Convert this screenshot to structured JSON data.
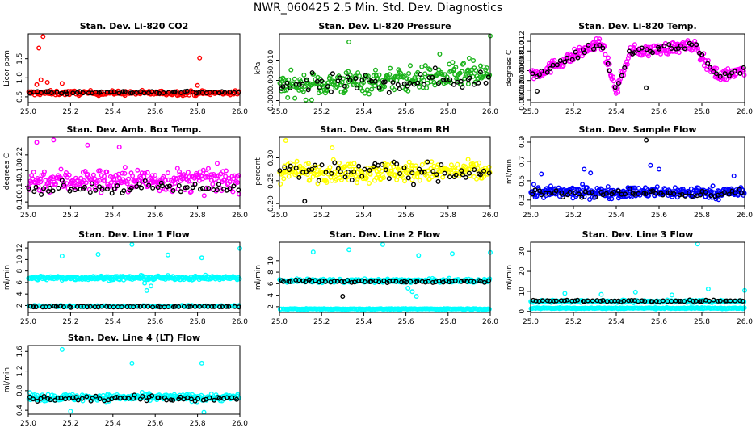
{
  "page": {
    "title": "NWR_060425  2.5 Min. Std. Dev. Diagnostics"
  },
  "colors": {
    "black": "#000000",
    "red": "#ff0000",
    "green": "#1bb31b",
    "magenta": "#ff00ff",
    "yellow": "#ffff00",
    "blue": "#0000ff",
    "cyan": "#00ffff"
  },
  "chart_data": [
    {
      "type": "scatter",
      "title": "Stan. Dev. Li-820 CO2",
      "xlabel": "",
      "ylabel": "Licor ppm",
      "xlim": [
        25.0,
        26.0
      ],
      "ylim": [
        0.35,
        2.15
      ],
      "xticks": [
        "25.0",
        "25.2",
        "25.4",
        "25.6",
        "25.8",
        "26.0"
      ],
      "yticks": [
        "0.5",
        "1.0",
        "1.5"
      ],
      "series": [
        {
          "color": "red",
          "base": 0.6,
          "noise": 0.06,
          "n": 220,
          "outliers": [
            [
              25.07,
              2.08
            ],
            [
              25.05,
              1.78
            ],
            [
              25.06,
              0.95
            ],
            [
              25.09,
              0.88
            ],
            [
              25.16,
              0.85
            ],
            [
              25.81,
              1.52
            ],
            [
              25.8,
              0.8
            ],
            [
              25.04,
              0.82
            ]
          ]
        },
        {
          "color": "black",
          "base": 0.62,
          "noise": 0.04,
          "n": 55,
          "outliers": []
        }
      ]
    },
    {
      "type": "scatter",
      "title": "Stan. Dev. Li-820 Pressure",
      "xlabel": "",
      "ylabel": "kPa",
      "xlim": [
        25.0,
        26.0
      ],
      "ylim": [
        -0.0005,
        0.0165
      ],
      "xticks": [
        "25.0",
        "25.2",
        "25.4",
        "25.6",
        "25.8",
        "26.0"
      ],
      "yticks": [
        "0.000",
        "0.005",
        "0.010"
      ],
      "series": [
        {
          "color": "green",
          "base": 0.0035,
          "noise": 0.003,
          "trend": 0.003,
          "n": 260,
          "outliers": [
            [
              25.33,
              0.0145
            ],
            [
              26.0,
              0.016
            ],
            [
              25.76,
              0.0115
            ],
            [
              25.9,
              0.0105
            ]
          ]
        },
        {
          "color": "black",
          "base": 0.0035,
          "noise": 0.0025,
          "trend": 0.002,
          "n": 60,
          "outliers": []
        }
      ]
    },
    {
      "type": "scatter",
      "title": "Stan. Dev. Li-820 Temp.",
      "xlabel": "",
      "ylabel": "degrees C",
      "xlim": [
        25.0,
        26.0
      ],
      "ylim": [
        -0.0005,
        0.0135
      ],
      "xticks": [
        "25.0",
        "25.2",
        "25.4",
        "25.6",
        "25.8",
        "26.0"
      ],
      "yticks": [
        "0.000",
        "0.002",
        "0.004",
        "0.006",
        "0.008",
        "0.010",
        "0.012"
      ],
      "series": [
        {
          "color": "magenta",
          "shape": "temp",
          "noise": 0.0012,
          "n": 280,
          "outliers": []
        },
        {
          "color": "black",
          "shape": "temp",
          "noise": 0.001,
          "n": 60,
          "outliers": [
            [
              25.03,
              0.0018
            ],
            [
              25.54,
              0.0025
            ]
          ]
        }
      ]
    },
    {
      "type": "scatter",
      "title": "Stan. Dev. Amb. Box Temp.",
      "xlabel": "",
      "ylabel": "degrees C",
      "xlim": [
        25.0,
        26.0
      ],
      "ylim": [
        0.09,
        0.265
      ],
      "xticks": [
        "25.0",
        "25.2",
        "25.4",
        "25.6",
        "25.8",
        "26.0"
      ],
      "yticks": [
        "0.10",
        "0.14",
        "0.18",
        "0.22"
      ],
      "series": [
        {
          "color": "magenta",
          "base": 0.155,
          "noise": 0.03,
          "n": 260,
          "outliers": [
            [
              25.12,
              0.258
            ],
            [
              25.04,
              0.252
            ],
            [
              25.28,
              0.245
            ],
            [
              25.43,
              0.24
            ]
          ]
        },
        {
          "color": "black",
          "base": 0.135,
          "noise": 0.015,
          "n": 60,
          "outliers": []
        }
      ]
    },
    {
      "type": "scatter",
      "title": "Stan. Dev. Gas Stream RH",
      "xlabel": "",
      "ylabel": "percent",
      "xlim": [
        25.0,
        26.0
      ],
      "ylim": [
        0.195,
        0.345
      ],
      "xticks": [
        "25.0",
        "25.2",
        "25.4",
        "25.6",
        "25.8",
        "26.0"
      ],
      "yticks": [
        "0.20",
        "0.25",
        "0.30"
      ],
      "series": [
        {
          "color": "yellow",
          "base": 0.27,
          "noise": 0.022,
          "n": 260,
          "outliers": [
            [
              25.03,
              0.338
            ],
            [
              25.25,
              0.322
            ]
          ]
        },
        {
          "color": "black",
          "base": 0.27,
          "noise": 0.022,
          "n": 60,
          "outliers": [
            [
              25.12,
              0.205
            ]
          ]
        }
      ]
    },
    {
      "type": "scatter",
      "title": "Stan. Dev. Sample Flow",
      "xlabel": "",
      "ylabel": "ml/min",
      "xlim": [
        25.0,
        26.0
      ],
      "ylim": [
        0.24,
        0.95
      ],
      "xticks": [
        "25.0",
        "25.2",
        "25.4",
        "25.6",
        "25.8",
        "26.0"
      ],
      "yticks": [
        "0.3",
        "0.5",
        "0.7",
        "0.9"
      ],
      "series": [
        {
          "color": "blue",
          "base": 0.38,
          "noise": 0.06,
          "n": 300,
          "outliers": [
            [
              25.25,
              0.62
            ],
            [
              25.28,
              0.58
            ],
            [
              25.56,
              0.66
            ],
            [
              25.6,
              0.62
            ],
            [
              25.05,
              0.57
            ],
            [
              25.95,
              0.55
            ]
          ]
        },
        {
          "color": "black",
          "base": 0.37,
          "noise": 0.04,
          "n": 60,
          "outliers": [
            [
              25.54,
              0.92
            ]
          ]
        }
      ]
    },
    {
      "type": "scatter",
      "title": "Stan. Dev. Line 1 Flow",
      "xlabel": "",
      "ylabel": "ml/min",
      "xlim": [
        25.0,
        26.0
      ],
      "ylim": [
        0.8,
        13.0
      ],
      "xticks": [
        "25.0",
        "25.2",
        "25.4",
        "25.6",
        "25.8",
        "26.0"
      ],
      "yticks": [
        "2",
        "4",
        "6",
        "8",
        "10",
        "12"
      ],
      "series": [
        {
          "color": "cyan",
          "base": 6.8,
          "noise": 0.35,
          "n": 260,
          "outliers": [
            [
              25.16,
              10.6
            ],
            [
              25.33,
              10.9
            ],
            [
              25.49,
              12.6
            ],
            [
              25.66,
              10.8
            ],
            [
              25.82,
              10.3
            ],
            [
              26.0,
              11.9
            ],
            [
              25.56,
              4.6
            ],
            [
              25.58,
              5.4
            ],
            [
              25.55,
              5.9
            ]
          ]
        },
        {
          "color": "cyan",
          "base": 1.9,
          "noise": 0.12,
          "n": 160,
          "outliers": []
        },
        {
          "color": "black",
          "base": 1.8,
          "noise": 0.1,
          "n": 55,
          "outliers": []
        }
      ]
    },
    {
      "type": "scatter",
      "title": "Stan. Dev. Line 2 Flow",
      "xlabel": "",
      "ylabel": "ml/min",
      "xlim": [
        25.0,
        26.0
      ],
      "ylim": [
        1.0,
        13.2
      ],
      "xticks": [
        "25.0",
        "25.2",
        "25.4",
        "25.6",
        "25.8",
        "26.0"
      ],
      "yticks": [
        "2",
        "4",
        "6",
        "8",
        "10"
      ],
      "series": [
        {
          "color": "cyan",
          "base": 6.5,
          "noise": 0.3,
          "n": 260,
          "outliers": [
            [
              25.16,
              11.5
            ],
            [
              25.33,
              11.9
            ],
            [
              25.49,
              12.8
            ],
            [
              25.66,
              10.9
            ],
            [
              25.82,
              11.2
            ],
            [
              26.0,
              11.4
            ],
            [
              25.63,
              4.6
            ],
            [
              25.65,
              3.8
            ],
            [
              25.61,
              5.2
            ]
          ]
        },
        {
          "color": "cyan",
          "base": 1.6,
          "noise": 0.08,
          "n": 200,
          "outliers": []
        },
        {
          "color": "black",
          "base": 6.4,
          "noise": 0.25,
          "n": 60,
          "outliers": [
            [
              25.3,
              3.8
            ]
          ]
        }
      ]
    },
    {
      "type": "scatter",
      "title": "Stan. Dev. Line 3 Flow",
      "xlabel": "",
      "ylabel": "ml/min",
      "xlim": [
        25.0,
        26.0
      ],
      "ylim": [
        -0.5,
        34.5
      ],
      "xticks": [
        "25.0",
        "25.2",
        "25.4",
        "25.6",
        "25.8",
        "26.0"
      ],
      "yticks": [
        "0",
        "10",
        "20",
        "30"
      ],
      "series": [
        {
          "color": "cyan",
          "base": 5.0,
          "noise": 0.6,
          "n": 240,
          "outliers": [
            [
              25.78,
              33.6
            ],
            [
              25.16,
              9.0
            ],
            [
              25.33,
              8.5
            ],
            [
              25.49,
              9.6
            ],
            [
              25.83,
              11.2
            ],
            [
              26.0,
              10.5
            ],
            [
              25.66,
              8.2
            ]
          ]
        },
        {
          "color": "cyan",
          "base": 1.6,
          "noise": 0.3,
          "n": 200,
          "outliers": []
        },
        {
          "color": "black",
          "base": 5.3,
          "noise": 0.4,
          "n": 60,
          "outliers": []
        }
      ]
    },
    {
      "type": "scatter",
      "title": "Stan. Dev. Line 4 (LT) Flow",
      "xlabel": "",
      "ylabel": "ml/min",
      "xlim": [
        25.0,
        26.0
      ],
      "ylim": [
        0.32,
        1.72
      ],
      "xticks": [
        "25.0",
        "25.2",
        "25.4",
        "25.6",
        "25.8",
        "26.0"
      ],
      "yticks": [
        "0.4",
        "0.8",
        "1.2",
        "1.6"
      ],
      "series": [
        {
          "color": "cyan",
          "base": 0.66,
          "noise": 0.07,
          "n": 280,
          "outliers": [
            [
              25.16,
              1.64
            ],
            [
              25.49,
              1.36
            ],
            [
              25.82,
              1.36
            ],
            [
              25.2,
              0.38
            ],
            [
              25.83,
              0.36
            ]
          ]
        },
        {
          "color": "black",
          "base": 0.64,
          "noise": 0.06,
          "n": 60,
          "outliers": []
        }
      ]
    }
  ]
}
